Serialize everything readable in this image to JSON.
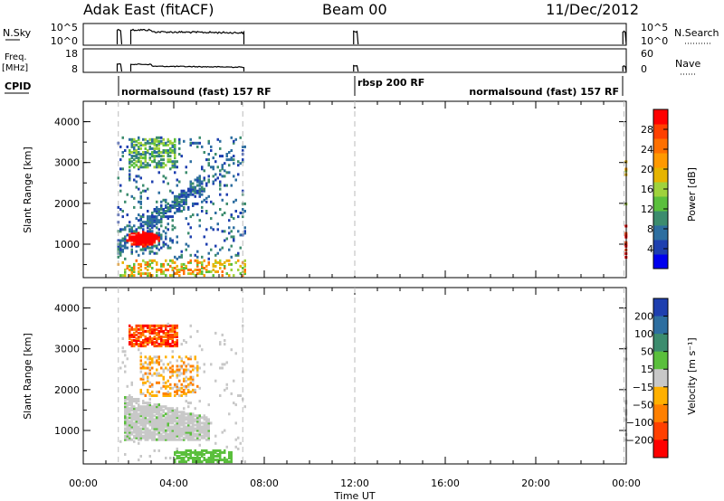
{
  "header": {
    "title": "Adak East (fitACF)",
    "beam": "Beam 00",
    "date": "11/Dec/2012"
  },
  "top_panels": {
    "nsky": {
      "label": "N.Sky",
      "ticks": [
        "10^5",
        "10^0"
      ],
      "right_ticks": [
        "10^5",
        "10^0"
      ],
      "right_label": "N.Search"
    },
    "freq": {
      "label_line1": "Freq.",
      "label_line2": "[MHz]",
      "ticks": [
        "18",
        "8"
      ],
      "right_ticks": [
        "60",
        "0"
      ],
      "right_label": "Nave"
    },
    "cpid": {
      "label": "CPID",
      "segments": [
        {
          "text": "normalsound (fast) 157 RF",
          "start_hr": 1.55
        },
        {
          "text": "rbsp 200 RF",
          "start_hr": 12.0
        },
        {
          "text": "normalsound (fast) 157 RF",
          "start_hr": 23.9
        }
      ]
    }
  },
  "chart_data": [
    {
      "type": "heatmap",
      "name": "power",
      "ylabel": "Slant Range [km]",
      "y_ticks": [
        "1000",
        "2000",
        "3000",
        "4000"
      ],
      "xlim_hr": [
        0,
        24
      ],
      "ylim_km": [
        180,
        4500
      ],
      "colorbar": {
        "label": "Power [dB]",
        "ticks": [
          "4",
          "8",
          "12",
          "16",
          "20",
          "24",
          "28"
        ],
        "colors": [
          "#0000ee",
          "#1e3faf",
          "#2d6ea0",
          "#3c8c6e",
          "#5abf3c",
          "#9fd23c",
          "#e6b400",
          "#ff9900",
          "#ff7000",
          "#ff4000",
          "#ff0000"
        ]
      }
    },
    {
      "type": "heatmap",
      "name": "velocity",
      "ylabel": "Slant Range [km]",
      "y_ticks": [
        "1000",
        "2000",
        "3000",
        "4000"
      ],
      "xlim_hr": [
        0,
        24
      ],
      "ylim_km": [
        180,
        4500
      ],
      "colorbar": {
        "label": "Velocity [m s⁻¹]",
        "ticks": [
          "200",
          "100",
          "50",
          "15",
          "−15",
          "−50",
          "−100",
          "−200"
        ],
        "colors": [
          "#1e3faf",
          "#2d6ea0",
          "#3c8c6e",
          "#5abf3c",
          "#c8c8c8",
          "#ffb000",
          "#ff8000",
          "#ff4000",
          "#ff0000"
        ]
      }
    }
  ],
  "x_axis": {
    "ticks": [
      "00:00",
      "04:00",
      "08:00",
      "12:00",
      "16:00",
      "20:00",
      "00:00"
    ],
    "label": "Time UT"
  }
}
